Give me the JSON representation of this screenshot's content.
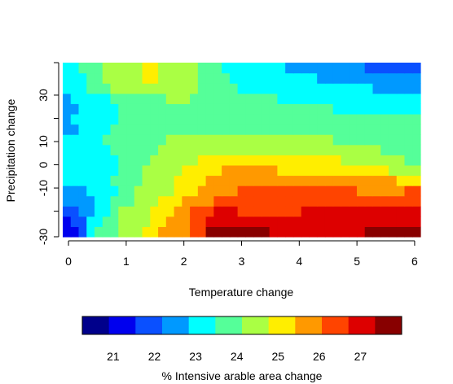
{
  "chart_data": {
    "type": "heatmap",
    "xlabel": "Temperature change",
    "ylabel": "Precipitation change",
    "x_ticks": [
      0,
      1,
      2,
      3,
      4,
      5,
      6
    ],
    "y_ticks": [
      -30,
      -10,
      0,
      10,
      30
    ],
    "xlim": [
      -0.1,
      6.1
    ],
    "ylim": [
      -31,
      44
    ],
    "grid": false,
    "colorbar": {
      "title": "% Intensive arable area change",
      "ticks": [
        21,
        22,
        23,
        24,
        25,
        26,
        27
      ],
      "range": [
        20.25,
        28.0
      ],
      "colors": [
        "#00008B",
        "#0000EE",
        "#0A50FF",
        "#0099FF",
        "#00FFFF",
        "#55FF99",
        "#AAFF44",
        "#FFEE00",
        "#FF9900",
        "#FF4400",
        "#DD0000",
        "#880000"
      ]
    },
    "levels_description": "heatmap cells colored by value of % intensive arable area change; rows ordered from bottom (precipitation -31) to top (precipitation 44)",
    "grid_x": [
      -0.1,
      6.1
    ],
    "grid_y": [
      -31,
      44
    ],
    "matrix": [
      [
        1,
        1,
        2,
        4,
        5,
        5,
        5,
        6,
        6,
        6,
        7,
        7,
        8,
        8,
        8,
        8,
        9,
        9,
        11,
        11,
        11,
        11,
        11,
        11,
        11,
        11,
        10,
        10,
        10,
        10,
        10,
        10,
        10,
        10,
        10,
        10,
        10,
        10,
        11,
        11,
        11,
        11,
        11,
        11,
        11
      ],
      [
        1,
        2,
        2,
        4,
        4,
        5,
        5,
        6,
        6,
        6,
        6,
        7,
        7,
        8,
        8,
        8,
        9,
        9,
        10,
        10,
        10,
        10,
        10,
        10,
        10,
        10,
        10,
        10,
        10,
        10,
        10,
        10,
        10,
        10,
        10,
        10,
        10,
        10,
        10,
        10,
        10,
        10,
        10,
        10,
        10
      ],
      [
        2,
        2,
        3,
        3,
        4,
        4,
        5,
        6,
        6,
        6,
        6,
        7,
        7,
        7,
        8,
        8,
        9,
        9,
        9,
        10,
        10,
        10,
        9,
        9,
        9,
        9,
        9,
        9,
        9,
        9,
        10,
        10,
        10,
        10,
        10,
        10,
        10,
        10,
        10,
        10,
        10,
        10,
        10,
        10,
        10
      ],
      [
        3,
        3,
        3,
        3,
        4,
        4,
        5,
        5,
        5,
        6,
        6,
        6,
        7,
        7,
        7,
        8,
        8,
        8,
        8,
        9,
        9,
        9,
        9,
        9,
        9,
        9,
        9,
        9,
        9,
        9,
        9,
        9,
        9,
        9,
        9,
        9,
        9,
        9,
        9,
        9,
        9,
        9,
        9,
        9,
        9
      ],
      [
        3,
        3,
        3,
        4,
        4,
        4,
        4,
        5,
        5,
        6,
        6,
        6,
        6,
        6,
        7,
        7,
        7,
        8,
        8,
        8,
        8,
        8,
        9,
        9,
        9,
        9,
        9,
        9,
        9,
        9,
        9,
        9,
        9,
        9,
        9,
        9,
        9,
        8,
        8,
        8,
        8,
        8,
        8,
        9,
        9
      ],
      [
        4,
        4,
        4,
        4,
        4,
        4,
        5,
        5,
        5,
        5,
        6,
        6,
        6,
        6,
        7,
        7,
        7,
        7,
        8,
        8,
        8,
        8,
        8,
        8,
        8,
        8,
        8,
        8,
        8,
        8,
        8,
        8,
        8,
        8,
        8,
        8,
        8,
        8,
        8,
        8,
        8,
        8,
        7,
        7,
        7
      ],
      [
        4,
        4,
        4,
        4,
        4,
        4,
        4,
        5,
        5,
        5,
        6,
        6,
        6,
        6,
        6,
        7,
        7,
        7,
        7,
        7,
        8,
        8,
        8,
        8,
        8,
        8,
        8,
        7,
        7,
        7,
        7,
        7,
        7,
        7,
        7,
        7,
        7,
        7,
        7,
        7,
        7,
        6,
        6,
        6,
        6
      ],
      [
        4,
        4,
        4,
        4,
        4,
        4,
        4,
        5,
        5,
        5,
        5,
        6,
        6,
        6,
        6,
        6,
        6,
        7,
        7,
        7,
        7,
        7,
        7,
        7,
        7,
        7,
        7,
        7,
        7,
        7,
        7,
        7,
        7,
        7,
        7,
        6,
        6,
        6,
        6,
        6,
        6,
        6,
        6,
        5,
        5
      ],
      [
        4,
        4,
        4,
        4,
        4,
        4,
        5,
        5,
        5,
        5,
        5,
        5,
        6,
        6,
        6,
        6,
        6,
        6,
        6,
        6,
        6,
        6,
        6,
        6,
        6,
        6,
        6,
        6,
        6,
        6,
        6,
        6,
        6,
        6,
        6,
        6,
        6,
        6,
        6,
        6,
        5,
        5,
        5,
        5,
        5
      ],
      [
        4,
        4,
        4,
        4,
        4,
        5,
        5,
        5,
        5,
        5,
        5,
        5,
        5,
        6,
        6,
        6,
        6,
        6,
        6,
        6,
        6,
        6,
        6,
        6,
        6,
        6,
        6,
        6,
        6,
        6,
        6,
        6,
        6,
        6,
        5,
        5,
        5,
        5,
        5,
        5,
        5,
        5,
        5,
        5,
        5
      ],
      [
        3,
        3,
        4,
        4,
        4,
        4,
        5,
        5,
        5,
        5,
        5,
        5,
        5,
        5,
        5,
        5,
        5,
        5,
        5,
        5,
        5,
        5,
        5,
        5,
        5,
        5,
        5,
        5,
        5,
        5,
        5,
        5,
        5,
        5,
        5,
        5,
        5,
        5,
        5,
        5,
        5,
        5,
        5,
        5,
        5
      ],
      [
        3,
        4,
        4,
        4,
        4,
        4,
        4,
        5,
        5,
        5,
        5,
        5,
        5,
        5,
        5,
        5,
        5,
        5,
        5,
        5,
        5,
        5,
        5,
        5,
        5,
        5,
        5,
        5,
        5,
        5,
        5,
        5,
        5,
        5,
        5,
        5,
        5,
        5,
        5,
        5,
        5,
        5,
        5,
        5,
        5
      ],
      [
        3,
        3,
        4,
        4,
        4,
        4,
        4,
        5,
        5,
        5,
        5,
        5,
        5,
        5,
        5,
        5,
        5,
        5,
        5,
        5,
        5,
        5,
        5,
        5,
        5,
        5,
        5,
        5,
        5,
        5,
        5,
        5,
        5,
        5,
        4,
        4,
        4,
        4,
        4,
        4,
        4,
        4,
        4,
        4,
        4
      ],
      [
        3,
        4,
        4,
        4,
        4,
        4,
        5,
        5,
        5,
        5,
        5,
        5,
        5,
        6,
        6,
        6,
        5,
        5,
        5,
        5,
        5,
        5,
        5,
        5,
        5,
        5,
        5,
        4,
        4,
        4,
        4,
        4,
        4,
        4,
        4,
        4,
        4,
        4,
        4,
        4,
        4,
        4,
        4,
        4,
        4
      ],
      [
        4,
        4,
        4,
        5,
        5,
        5,
        6,
        6,
        6,
        6,
        6,
        6,
        6,
        6,
        6,
        6,
        6,
        5,
        5,
        5,
        5,
        5,
        4,
        4,
        4,
        4,
        4,
        4,
        4,
        4,
        4,
        4,
        4,
        4,
        4,
        4,
        4,
        4,
        4,
        3,
        3,
        3,
        3,
        3,
        3
      ],
      [
        4,
        4,
        4,
        5,
        5,
        6,
        6,
        6,
        6,
        6,
        7,
        7,
        6,
        6,
        6,
        6,
        6,
        5,
        5,
        5,
        5,
        4,
        4,
        4,
        4,
        4,
        4,
        4,
        4,
        4,
        4,
        4,
        3,
        3,
        3,
        3,
        3,
        3,
        3,
        3,
        3,
        3,
        3,
        3,
        3
      ],
      [
        4,
        4,
        5,
        5,
        5,
        6,
        6,
        6,
        6,
        6,
        7,
        7,
        6,
        6,
        6,
        6,
        6,
        5,
        5,
        5,
        4,
        4,
        4,
        4,
        4,
        4,
        4,
        4,
        3,
        3,
        3,
        3,
        3,
        3,
        3,
        3,
        3,
        3,
        2,
        2,
        2,
        2,
        2,
        2,
        2
      ]
    ]
  }
}
